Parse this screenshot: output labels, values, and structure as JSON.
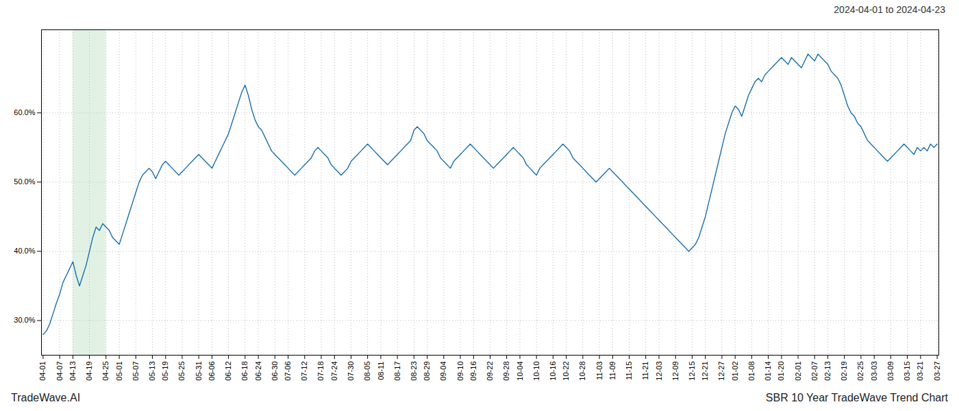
{
  "chart_data": {
    "type": "line",
    "title": "2024-04-01 to 2024-04-23",
    "annotations": [
      "TradeWave.AI",
      "SBR 10 Year TradeWave Trend Chart"
    ],
    "categories": [
      "04-01",
      null,
      null,
      null,
      null,
      "04-07",
      null,
      null,
      null,
      "04-13",
      null,
      null,
      null,
      null,
      "04-19",
      null,
      null,
      null,
      null,
      "04-25",
      null,
      null,
      null,
      "05-01",
      null,
      null,
      null,
      null,
      "05-07",
      null,
      null,
      null,
      null,
      "05-13",
      null,
      null,
      null,
      "05-19",
      null,
      null,
      null,
      null,
      "05-25",
      null,
      null,
      null,
      null,
      "05-31",
      null,
      null,
      null,
      "06-06",
      null,
      null,
      null,
      null,
      "06-12",
      null,
      null,
      null,
      null,
      "06-18",
      null,
      null,
      null,
      "06-24",
      null,
      null,
      null,
      null,
      "06-30",
      null,
      null,
      null,
      "07-06",
      null,
      null,
      null,
      null,
      "07-12",
      null,
      null,
      null,
      null,
      "07-18",
      null,
      null,
      null,
      "07-24",
      null,
      null,
      null,
      null,
      "07-30",
      null,
      null,
      null,
      null,
      "08-05",
      null,
      null,
      null,
      "08-11",
      null,
      null,
      null,
      null,
      "08-17",
      null,
      null,
      null,
      null,
      "08-23",
      null,
      null,
      null,
      "08-29",
      null,
      null,
      null,
      null,
      "09-04",
      null,
      null,
      null,
      null,
      "09-10",
      null,
      null,
      null,
      "09-16",
      null,
      null,
      null,
      null,
      "09-22",
      null,
      null,
      null,
      null,
      "09-28",
      null,
      null,
      null,
      "10-04",
      null,
      null,
      null,
      null,
      "10-10",
      null,
      null,
      null,
      null,
      "10-16",
      null,
      null,
      null,
      "10-22",
      null,
      null,
      null,
      null,
      "10-28",
      null,
      null,
      null,
      null,
      "11-03",
      null,
      null,
      null,
      "11-09",
      null,
      null,
      null,
      null,
      "11-15",
      null,
      null,
      null,
      null,
      "11-21",
      null,
      null,
      null,
      "12-03",
      null,
      null,
      null,
      null,
      "12-09",
      null,
      null,
      null,
      null,
      "12-15",
      null,
      null,
      null,
      "12-21",
      null,
      null,
      null,
      null,
      "12-27",
      null,
      null,
      null,
      "01-02",
      null,
      null,
      null,
      null,
      "01-08",
      null,
      null,
      null,
      null,
      "01-14",
      null,
      null,
      null,
      "01-20",
      null,
      null,
      null,
      null,
      "02-01",
      null,
      null,
      null,
      null,
      "02-07",
      null,
      null,
      null,
      "02-13",
      null,
      null,
      null,
      null,
      "02-19",
      null,
      null,
      null,
      null,
      "02-25",
      null,
      null,
      null,
      "03-03",
      null,
      null,
      null,
      null,
      "03-09",
      null,
      null,
      null,
      null,
      "03-15",
      null,
      null,
      null,
      "03-21",
      null,
      null,
      null,
      null,
      "03-27"
    ],
    "values": [
      28.0,
      28.5,
      29.5,
      31.0,
      32.5,
      33.8,
      35.5,
      36.5,
      37.5,
      38.5,
      36.5,
      35.0,
      36.5,
      38.0,
      40.0,
      42.0,
      43.5,
      43.0,
      44.0,
      43.5,
      43.0,
      42.0,
      41.5,
      41.0,
      42.5,
      44.0,
      45.5,
      47.0,
      48.5,
      50.0,
      51.0,
      51.5,
      52.0,
      51.5,
      50.5,
      51.5,
      52.5,
      53.0,
      52.5,
      52.0,
      51.5,
      51.0,
      51.5,
      52.0,
      52.5,
      53.0,
      53.5,
      54.0,
      53.5,
      53.0,
      52.5,
      52.0,
      53.0,
      54.0,
      55.0,
      56.0,
      57.0,
      58.5,
      60.0,
      61.5,
      63.0,
      64.0,
      62.5,
      60.5,
      59.0,
      58.0,
      57.5,
      56.5,
      55.5,
      54.5,
      54.0,
      53.5,
      53.0,
      52.5,
      52.0,
      51.5,
      51.0,
      51.5,
      52.0,
      52.5,
      53.0,
      53.5,
      54.5,
      55.0,
      54.5,
      54.0,
      53.5,
      52.5,
      52.0,
      51.5,
      51.0,
      51.5,
      52.0,
      53.0,
      53.5,
      54.0,
      54.5,
      55.0,
      55.5,
      55.0,
      54.5,
      54.0,
      53.5,
      53.0,
      52.5,
      53.0,
      53.5,
      54.0,
      54.5,
      55.0,
      55.5,
      56.0,
      57.5,
      58.0,
      57.5,
      57.0,
      56.0,
      55.5,
      55.0,
      54.5,
      53.5,
      53.0,
      52.5,
      52.0,
      53.0,
      53.5,
      54.0,
      54.5,
      55.0,
      55.5,
      55.0,
      54.5,
      54.0,
      53.5,
      53.0,
      52.5,
      52.0,
      52.5,
      53.0,
      53.5,
      54.0,
      54.5,
      55.0,
      54.5,
      54.0,
      53.5,
      52.5,
      52.0,
      51.5,
      51.0,
      52.0,
      52.5,
      53.0,
      53.5,
      54.0,
      54.5,
      55.0,
      55.5,
      55.0,
      54.5,
      53.5,
      53.0,
      52.5,
      52.0,
      51.5,
      51.0,
      50.5,
      50.0,
      50.5,
      51.0,
      51.5,
      52.0,
      51.5,
      51.0,
      50.5,
      50.0,
      49.5,
      49.0,
      48.5,
      48.0,
      47.5,
      47.0,
      46.5,
      46.0,
      45.5,
      45.0,
      44.5,
      44.0,
      43.5,
      43.0,
      42.5,
      42.0,
      41.5,
      41.0,
      40.5,
      40.0,
      40.5,
      41.0,
      42.0,
      43.5,
      45.0,
      47.0,
      49.0,
      51.0,
      53.0,
      55.0,
      57.0,
      58.5,
      60.0,
      61.0,
      60.5,
      59.5,
      61.0,
      62.5,
      63.5,
      64.5,
      65.0,
      64.5,
      65.5,
      66.0,
      66.5,
      67.0,
      67.5,
      68.0,
      67.5,
      67.0,
      68.0,
      67.5,
      67.0,
      66.5,
      67.5,
      68.5,
      68.0,
      67.5,
      68.5,
      68.0,
      67.5,
      67.0,
      66.0,
      65.5,
      65.0,
      64.0,
      62.5,
      61.0,
      60.0,
      59.5,
      58.5,
      58.0,
      57.0,
      56.0,
      55.5,
      55.0,
      54.5,
      54.0,
      53.5,
      53.0,
      53.5,
      54.0,
      54.5,
      55.0,
      55.5,
      55.0,
      54.5,
      54.0,
      55.0,
      54.5,
      55.0,
      54.5,
      55.5,
      55.0,
      55.5
    ],
    "color": "#1a6eab",
    "highlight": {
      "start": "04-13",
      "end": "04-25",
      "color": "#d4edda"
    },
    "ylim": [
      25.0,
      72.0
    ],
    "yticks": [
      {
        "value": 30.0,
        "label": "30.0%"
      },
      {
        "value": 40.0,
        "label": "40.0%"
      },
      {
        "value": 50.0,
        "label": "50.0%"
      },
      {
        "value": 60.0,
        "label": "60.0%"
      }
    ],
    "grid": true
  }
}
